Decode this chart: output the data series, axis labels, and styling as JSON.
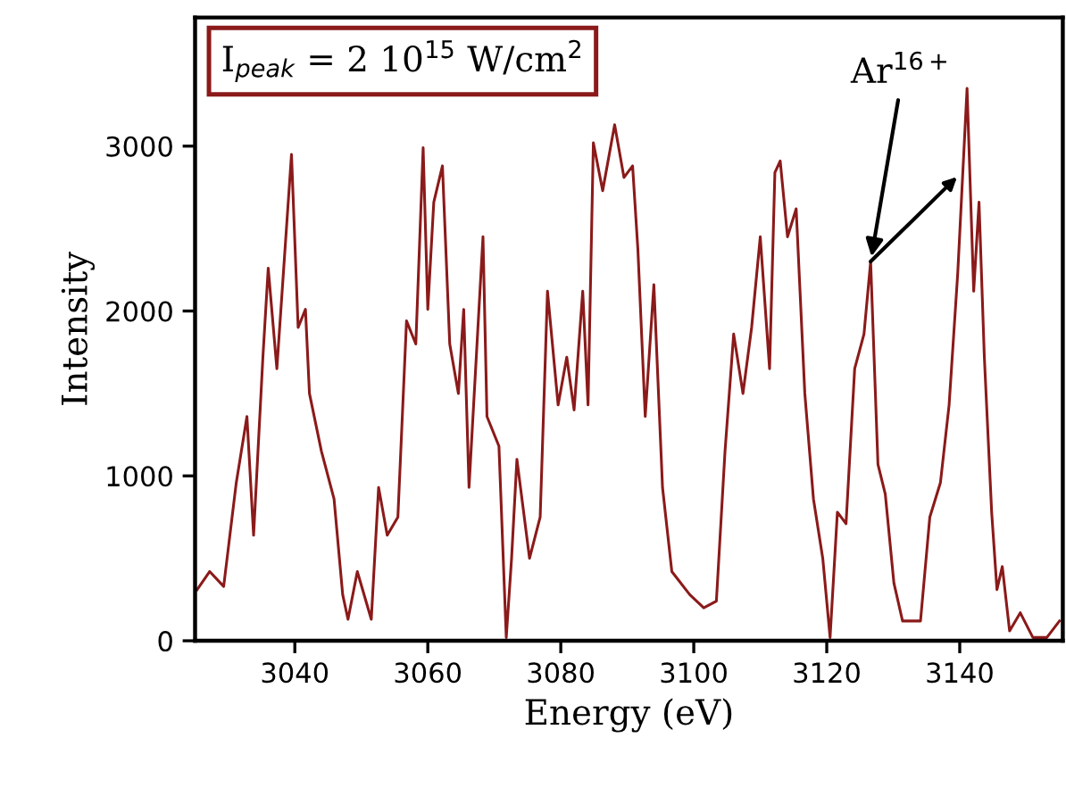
{
  "chart_data": {
    "type": "line",
    "xlabel": "Energy (eV)",
    "ylabel": "Intensity",
    "x": [
      3025.3,
      3027.2,
      3029.3,
      3031.2,
      3032.8,
      3033.8,
      3035.2,
      3036,
      3037.3,
      3039.5,
      3040.5,
      3041.6,
      3042.2,
      3044,
      3045.9,
      3047.2,
      3048,
      3049.4,
      3051.5,
      3052.6,
      3053.9,
      3055.5,
      3056.8,
      3058.2,
      3059.3,
      3060,
      3060.9,
      3062.2,
      3063.3,
      3064.6,
      3065.4,
      3066.2,
      3068.3,
      3068.9,
      3070.7,
      3071.8,
      3072.6,
      3073.4,
      3075.3,
      3076.9,
      3078,
      3079.6,
      3080.9,
      3082,
      3083.3,
      3084.1,
      3084.9,
      3086.3,
      3088.1,
      3089.5,
      3090.8,
      3091.6,
      3092.7,
      3094,
      3095.3,
      3096.7,
      3099.4,
      3101.5,
      3103.4,
      3104.7,
      3106,
      3107.4,
      3108.7,
      3110,
      3111.4,
      3112.2,
      3113,
      3114.1,
      3115.4,
      3116.7,
      3118,
      3119.4,
      3120.5,
      3121.6,
      3122.9,
      3124.2,
      3125.6,
      3126.6,
      3127.7,
      3128.8,
      3130.1,
      3131.4,
      3134.1,
      3135.5,
      3137.1,
      3138.4,
      3139.7,
      3141.1,
      3142.1,
      3142.9,
      3143.7,
      3144.8,
      3145.6,
      3146.4,
      3147.5,
      3149.1,
      3151,
      3153.1,
      3155
    ],
    "series": [
      {
        "color": "#8b1a1a",
        "values": [
          310,
          420,
          330,
          960,
          1360,
          640,
          1720,
          2260,
          1650,
          2950,
          1900,
          2010,
          1500,
          1150,
          860,
          280,
          130,
          420,
          130,
          930,
          640,
          750,
          1940,
          1800,
          2990,
          2010,
          2660,
          2880,
          1800,
          1500,
          2010,
          930,
          2450,
          1360,
          1180,
          20,
          500,
          1100,
          500,
          750,
          2120,
          1430,
          1720,
          1400,
          2120,
          1430,
          3020,
          2730,
          3130,
          2810,
          2880,
          2370,
          1360,
          2160,
          930,
          420,
          280,
          200,
          240,
          1150,
          1860,
          1500,
          1900,
          2450,
          1650,
          2840,
          2910,
          2450,
          2620,
          1500,
          860,
          500,
          20,
          780,
          710,
          1650,
          1860,
          2300,
          1070,
          890,
          350,
          120,
          120,
          750,
          960,
          1430,
          2230,
          3350,
          2120,
          2660,
          1720,
          780,
          310,
          450,
          60,
          170,
          20,
          20,
          120
        ]
      }
    ],
    "xlim": [
      3025,
      3155.5
    ],
    "xticks": [
      3040,
      3060,
      3080,
      3100,
      3120,
      3140
    ],
    "ylim": [
      0,
      3780
    ],
    "yticks": [
      0,
      1000,
      2000,
      3000
    ],
    "grid": false,
    "legend": false,
    "marker": "none",
    "line_style": "solid",
    "annotations": [
      "I$_{peak}$ = 2 10$^{15}$ W/cm$^{2}$",
      {
        "text": "Ar$^{16+}$",
        "x": 3126.6,
        "y": 2300
      }
    ]
  }
}
